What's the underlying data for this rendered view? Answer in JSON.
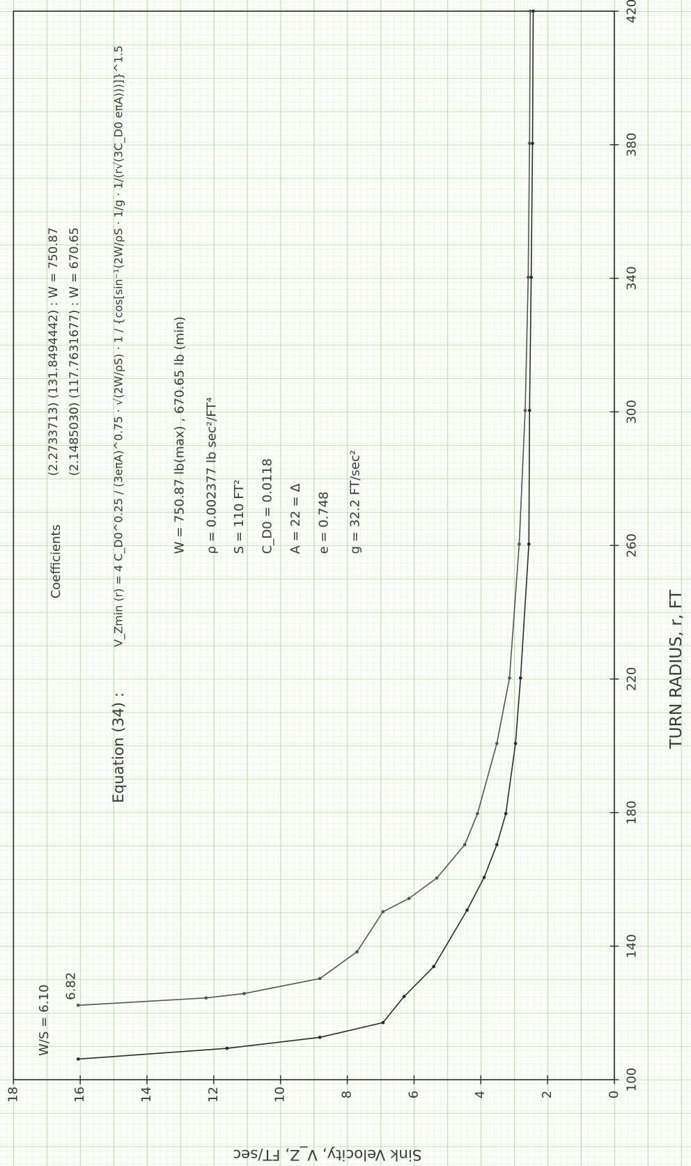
{
  "chart_data": {
    "type": "line",
    "x_label": "TURN RADIUS, r, FT",
    "y_label": "Sink Velocity, V_Z, FT/sec",
    "xlim": [
      100,
      420
    ],
    "xticks": [
      100,
      140,
      180,
      220,
      260,
      300,
      340,
      380,
      420
    ],
    "ylim": [
      0,
      18
    ],
    "yticks": [
      0,
      2,
      4,
      6,
      8,
      10,
      12,
      14,
      16,
      18
    ],
    "grid": true,
    "series": [
      {
        "name": "W/S = 6.10",
        "color": "#2a2a2a",
        "x": [
          106.2,
          109.4,
          112.7,
          117.1,
          124.9,
          133.9,
          150.8,
          160.6,
          170.4,
          179.7,
          200.7,
          220.3,
          260.4,
          300.4,
          340.3,
          380.4,
          420
        ],
        "values": [
          16.06,
          11.6,
          8.82,
          6.93,
          6.3,
          5.41,
          4.41,
          3.9,
          3.52,
          3.25,
          2.96,
          2.81,
          2.56,
          2.54,
          2.49,
          2.45,
          2.43
        ]
      },
      {
        "name": "6.82",
        "color": "#555555",
        "x": [
          122.3,
          124.5,
          125.8,
          130.3,
          138.3,
          150.3,
          154.3,
          160.4,
          170.4,
          179.7,
          200.7,
          220.3,
          260.4,
          300.4,
          340.3,
          380.4,
          420
        ],
        "values": [
          16.06,
          12.23,
          11.09,
          8.82,
          7.71,
          6.93,
          6.15,
          5.32,
          4.48,
          4.1,
          3.52,
          3.14,
          2.85,
          2.67,
          2.58,
          2.54,
          2.52
        ]
      }
    ],
    "annotations": [
      "Coefficients",
      "(2.2733713) (131.8494442) : W = 750.87",
      "(2.1485030) (117.7631677) : W = 670.65",
      "Equation (34) :",
      "V_Zmin (r) = 4 C_D0^0.25 / (3eπA)^0.75 · √(2W/ρS) · 1 / {cos[sin⁻¹(2W/ρS · 1/g · 1/(r√(3C_D0 eπA)))]}^1.5",
      "W = 750.87 lb(max) , 670.65 lb (min)",
      "ρ = 0.002377 lb sec²/FT⁴",
      "S = 110 FT²",
      "C_D0 = 0.0118",
      "A = 22 = Δ",
      "e = 0.748",
      "g = 32.2 FT/sec²"
    ]
  }
}
